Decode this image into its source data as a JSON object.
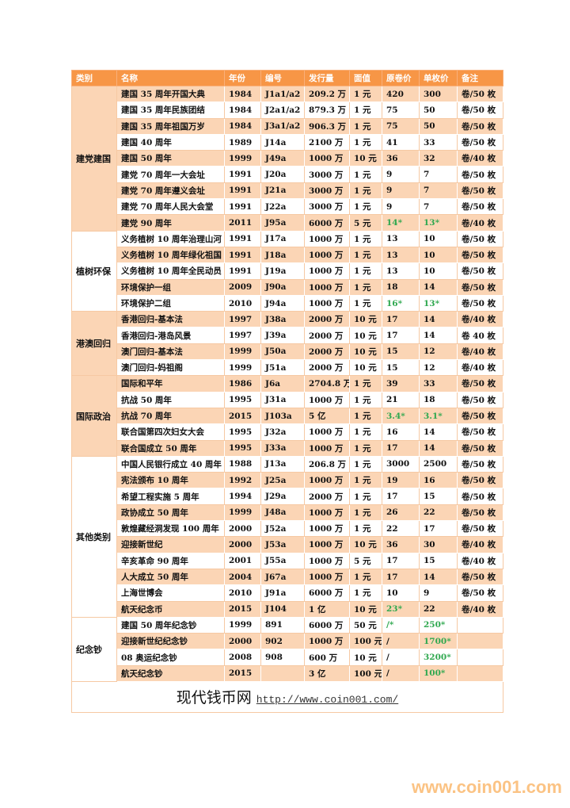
{
  "headers": [
    "类别",
    "名称",
    "年份",
    "编号",
    "发行量",
    "面值",
    "原卷价",
    "单枚价",
    "备注"
  ],
  "groups": [
    {
      "category": "建党建国",
      "shaded": true,
      "rows": [
        [
          "建国 35 周年开国大典",
          "1984",
          "J1a1/a2",
          "209.2 万",
          "1 元",
          "420",
          "300",
          "卷/50 枚"
        ],
        [
          "建国 35 周年民族团结",
          "1984",
          "J2a1/a2",
          "879.3 万",
          "1 元",
          "75",
          "50",
          "卷/50 枚"
        ],
        [
          "建国 35 周年祖国万岁",
          "1984",
          "J3a1/a2",
          "906.3 万",
          "1 元",
          "75",
          "50",
          "卷/50 枚"
        ],
        [
          "建国 40 周年",
          "1989",
          "J14a",
          "2100 万",
          "1 元",
          "41",
          "33",
          "卷/50 枚"
        ],
        [
          "建国 50 周年",
          "1999",
          "J49a",
          "1000 万",
          "10 元",
          "36",
          "32",
          "卷/40 枚"
        ],
        [
          "建党 70 周年一大会址",
          "1991",
          "J20a",
          "3000 万",
          "1 元",
          "9",
          "7",
          "卷/50 枚"
        ],
        [
          "建党 70 周年遵义会址",
          "1991",
          "J21a",
          "3000 万",
          "1 元",
          "9",
          "7",
          "卷/50 枚"
        ],
        [
          "建党 70 周年人民大会堂",
          "1991",
          "J22a",
          "3000 万",
          "1 元",
          "9",
          "7",
          "卷/50 枚"
        ],
        [
          "建党 90 周年",
          "2011",
          "J95a",
          "6000 万",
          "5 元",
          "14*",
          "13*",
          "卷/40 枚"
        ]
      ]
    },
    {
      "category": "植树环保",
      "shaded": false,
      "rows": [
        [
          "义务植树 10 周年治理山河",
          "1991",
          "J17a",
          "1000 万",
          "1 元",
          "13",
          "10",
          "卷/50 枚"
        ],
        [
          "义务植树 10 周年绿化祖国",
          "1991",
          "J18a",
          "1000 万",
          "1 元",
          "13",
          "10",
          "卷/50 枚"
        ],
        [
          "义务植树 10 周年全民动员",
          "1991",
          "J19a",
          "1000 万",
          "1 元",
          "13",
          "10",
          "卷/50 枚"
        ],
        [
          "环境保护一组",
          "2009",
          "J90a",
          "1000 万",
          "1 元",
          "18",
          "14",
          "卷/50 枚"
        ],
        [
          "环境保护二组",
          "2010",
          "J94a",
          "1000 万",
          "1 元",
          "16*",
          "13*",
          "卷/50 枚"
        ]
      ]
    },
    {
      "category": "港澳回归",
      "shaded": true,
      "rows": [
        [
          "香港回归-基本法",
          "1997",
          "J38a",
          "2000 万",
          "10 元",
          "17",
          "14",
          "卷/40 枚"
        ],
        [
          "香港回归-港岛风景",
          "1997",
          "J39a",
          "2000 万",
          "10 元",
          "17",
          "14",
          "卷 40 枚"
        ],
        [
          "澳门回归-基本法",
          "1999",
          "J50a",
          "2000 万",
          "10 元",
          "15",
          "12",
          "卷/40 枚"
        ],
        [
          "澳门回归-妈祖阁",
          "1999",
          "J51a",
          "2000 万",
          "10 元",
          "15",
          "12",
          "卷/40 枚"
        ]
      ]
    },
    {
      "category": "国际政治",
      "shaded": true,
      "rows": [
        [
          "国际和平年",
          "1986",
          "J6a",
          "2704.8 万",
          "1 元",
          "39",
          "33",
          "卷/50 枚"
        ],
        [
          "抗战 50 周年",
          "1995",
          "J31a",
          "1000 万",
          "1 元",
          "21",
          "18",
          "卷/50 枚"
        ],
        [
          "抗战 70 周年",
          "2015",
          "J103a",
          "5 亿",
          "1 元",
          "3.4*",
          "3.1*",
          "卷/50 枚"
        ],
        [
          "联合国第四次妇女大会",
          "1995",
          "J32a",
          "1000 万",
          "1 元",
          "16",
          "14",
          "卷/50 枚"
        ],
        [
          "联合国成立 50 周年",
          "1995",
          "J33a",
          "1000 万",
          "1 元",
          "17",
          "14",
          "卷/50 枚"
        ]
      ]
    },
    {
      "category": "其他类别",
      "shaded": false,
      "rows": [
        [
          "中国人民银行成立 40 周年",
          "1988",
          "J13a",
          "206.8 万",
          "1 元",
          "3000",
          "2500",
          "卷/50 枚"
        ],
        [
          "宪法颁布 10 周年",
          "1992",
          "J25a",
          "1000 万",
          "1 元",
          "19",
          "16",
          "卷/50 枚"
        ],
        [
          "希望工程实施 5 周年",
          "1994",
          "J29a",
          "2000 万",
          "1 元",
          "17",
          "15",
          "卷/50 枚"
        ],
        [
          "政协成立 50 周年",
          "1999",
          "J48a",
          "1000 万",
          "1 元",
          "26",
          "22",
          "卷/50 枚"
        ],
        [
          "敦煌藏经洞发现 100 周年",
          "2000",
          "J52a",
          "1000 万",
          "1 元",
          "22",
          "17",
          "卷/50 枚"
        ],
        [
          "迎接新世纪",
          "2000",
          "J53a",
          "1000 万",
          "10 元",
          "36",
          "30",
          "卷/40 枚"
        ],
        [
          "辛亥革命 90 周年",
          "2001",
          "J55a",
          "1000 万",
          "5 元",
          "17",
          "15",
          "卷/40 枚"
        ],
        [
          "人大成立 50 周年",
          "2004",
          "J67a",
          "1000 万",
          "1 元",
          "17",
          "14",
          "卷/50 枚"
        ],
        [
          "上海世博会",
          "2010",
          "J91a",
          "6000 万",
          "1 元",
          "10",
          "9",
          "卷/50 枚"
        ],
        [
          "航天纪念币",
          "2015",
          "J104",
          "1 亿",
          "10 元",
          "23*",
          "22",
          "卷/40 枚"
        ]
      ]
    },
    {
      "category": "纪念钞",
      "shaded": false,
      "rows": [
        [
          "建国 50 周年纪念钞",
          "1999",
          "891",
          "6000 万",
          "50 元",
          "/*",
          "250*",
          ""
        ],
        [
          "迎接新世纪纪念钞",
          "2000",
          "902",
          "1000 万",
          "100 元",
          "/",
          "1700*",
          ""
        ],
        [
          "08 奥运纪念钞",
          "2008",
          "908",
          "600 万",
          "10 元",
          "/",
          "3200*",
          ""
        ],
        [
          "航天纪念钞",
          "2015",
          "",
          "3 亿",
          "100 元",
          "/",
          "100*",
          ""
        ]
      ]
    }
  ],
  "highlight_note": "* marks values shown in green",
  "colors": {
    "header": "#f79646",
    "shade": "#fbd5b5",
    "green": "#2fa84f",
    "watermark": "#fbc384"
  },
  "footer": {
    "site_name": "现代钱币网",
    "url": "http://www.coin001.com/"
  },
  "watermark": "www.coin001.com"
}
